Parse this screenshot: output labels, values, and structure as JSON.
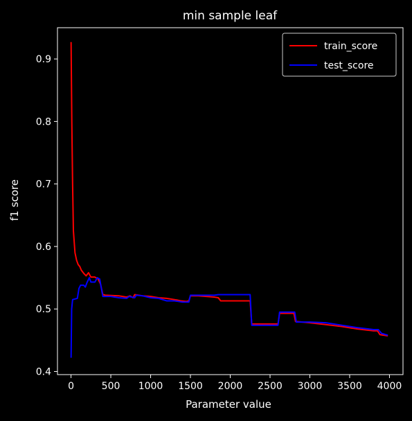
{
  "chart_data": {
    "type": "line",
    "title": "min sample leaf",
    "xlabel": "Parameter value",
    "ylabel": "f1 score",
    "xlim": [
      -170,
      4170
    ],
    "ylim": [
      0.395,
      0.95
    ],
    "xticks": [
      0,
      500,
      1000,
      1500,
      2000,
      2500,
      3000,
      3500,
      4000
    ],
    "yticks": [
      0.4,
      0.5,
      0.6,
      0.7,
      0.8,
      0.9
    ],
    "ytick_labels": [
      "0.4",
      "0.5",
      "0.6",
      "0.7",
      "0.8",
      "0.9"
    ],
    "grid": false,
    "legend_position": "top-right",
    "series": [
      {
        "name": "train_score",
        "color": "#ff0000",
        "points": [
          [
            1,
            0.927
          ],
          [
            10,
            0.8
          ],
          [
            20,
            0.7
          ],
          [
            30,
            0.625
          ],
          [
            50,
            0.59
          ],
          [
            70,
            0.578
          ],
          [
            90,
            0.571
          ],
          [
            110,
            0.568
          ],
          [
            130,
            0.562
          ],
          [
            160,
            0.557
          ],
          [
            190,
            0.553
          ],
          [
            220,
            0.558
          ],
          [
            250,
            0.551
          ],
          [
            300,
            0.551
          ],
          [
            340,
            0.548
          ],
          [
            370,
            0.54
          ],
          [
            400,
            0.523
          ],
          [
            430,
            0.522
          ],
          [
            600,
            0.521
          ],
          [
            700,
            0.519
          ],
          [
            740,
            0.521
          ],
          [
            780,
            0.518
          ],
          [
            800,
            0.523
          ],
          [
            900,
            0.521
          ],
          [
            1000,
            0.52
          ],
          [
            1100,
            0.518
          ],
          [
            1200,
            0.517
          ],
          [
            1300,
            0.515
          ],
          [
            1380,
            0.513
          ],
          [
            1450,
            0.512
          ],
          [
            1480,
            0.513
          ],
          [
            1500,
            0.521
          ],
          [
            1600,
            0.521
          ],
          [
            1700,
            0.52
          ],
          [
            1800,
            0.519
          ],
          [
            1850,
            0.518
          ],
          [
            1880,
            0.513
          ],
          [
            2250,
            0.513
          ],
          [
            2270,
            0.476
          ],
          [
            2600,
            0.476
          ],
          [
            2620,
            0.493
          ],
          [
            2800,
            0.493
          ],
          [
            2820,
            0.48
          ],
          [
            3000,
            0.478
          ],
          [
            3200,
            0.475
          ],
          [
            3400,
            0.472
          ],
          [
            3600,
            0.468
          ],
          [
            3800,
            0.465
          ],
          [
            3850,
            0.465
          ],
          [
            3880,
            0.459
          ],
          [
            3980,
            0.457
          ]
        ]
      },
      {
        "name": "test_score",
        "color": "#0000ff",
        "points": [
          [
            1,
            0.422
          ],
          [
            8,
            0.5
          ],
          [
            20,
            0.515
          ],
          [
            80,
            0.517
          ],
          [
            100,
            0.533
          ],
          [
            120,
            0.538
          ],
          [
            160,
            0.538
          ],
          [
            180,
            0.535
          ],
          [
            200,
            0.542
          ],
          [
            230,
            0.55
          ],
          [
            250,
            0.543
          ],
          [
            300,
            0.543
          ],
          [
            330,
            0.55
          ],
          [
            360,
            0.548
          ],
          [
            400,
            0.52
          ],
          [
            500,
            0.52
          ],
          [
            600,
            0.518
          ],
          [
            700,
            0.517
          ],
          [
            730,
            0.52
          ],
          [
            800,
            0.518
          ],
          [
            820,
            0.522
          ],
          [
            900,
            0.521
          ],
          [
            1000,
            0.518
          ],
          [
            1100,
            0.517
          ],
          [
            1200,
            0.513
          ],
          [
            1300,
            0.513
          ],
          [
            1400,
            0.511
          ],
          [
            1480,
            0.511
          ],
          [
            1500,
            0.522
          ],
          [
            1600,
            0.522
          ],
          [
            1800,
            0.522
          ],
          [
            1850,
            0.523
          ],
          [
            2250,
            0.523
          ],
          [
            2270,
            0.474
          ],
          [
            2600,
            0.474
          ],
          [
            2620,
            0.495
          ],
          [
            2810,
            0.495
          ],
          [
            2830,
            0.479
          ],
          [
            3000,
            0.479
          ],
          [
            3200,
            0.478
          ],
          [
            3400,
            0.474
          ],
          [
            3600,
            0.47
          ],
          [
            3800,
            0.467
          ],
          [
            3860,
            0.467
          ],
          [
            3900,
            0.461
          ],
          [
            3980,
            0.458
          ]
        ]
      }
    ]
  }
}
